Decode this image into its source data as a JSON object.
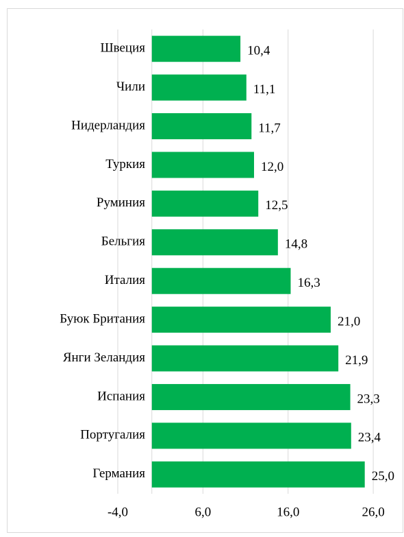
{
  "chart_data": {
    "type": "bar",
    "orientation": "horizontal",
    "categories": [
      "Швеция",
      "Чили",
      "Нидерландия",
      "Туркия",
      "Руминия",
      "Бельгия",
      "Италия",
      "Буюк Британия",
      "Янги Зеландия",
      "Испания",
      "Португалия",
      "Германия"
    ],
    "values": [
      10.4,
      11.1,
      11.7,
      12.0,
      12.5,
      14.8,
      16.3,
      21.0,
      21.9,
      23.3,
      23.4,
      25.0
    ],
    "value_labels": [
      "10,4",
      "11,1",
      "11,7",
      "12,0",
      "12,5",
      "14,8",
      "16,3",
      "21,0",
      "21,9",
      "23,3",
      "23,4",
      "25,0"
    ],
    "color": "#00b050",
    "xlim": [
      -4,
      28
    ],
    "xticks": [
      {
        "value": -4,
        "label": "-4,0"
      },
      {
        "value": 6,
        "label": "6,0"
      },
      {
        "value": 16,
        "label": "16,0"
      },
      {
        "value": 26,
        "label": "26,0"
      }
    ],
    "grid": true
  }
}
